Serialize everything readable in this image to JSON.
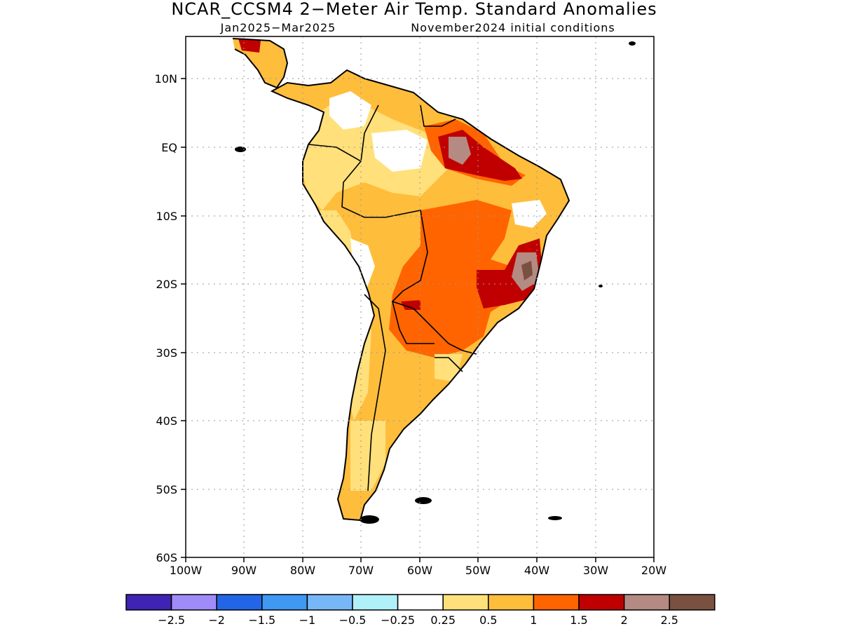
{
  "title": "NCAR_CCSM4 2−Meter Air Temp. Standard Anomalies",
  "subtitle_period": "Jan2025−Mar2025",
  "subtitle_init": "November2024 initial conditions",
  "lat_labels": [
    "10N",
    "EQ",
    "10S",
    "20S",
    "30S",
    "40S",
    "50S",
    "60S"
  ],
  "lon_labels": [
    "100W",
    "90W",
    "80W",
    "70W",
    "60W",
    "50W",
    "40W",
    "30W",
    "20W"
  ],
  "colorbar": {
    "colors": [
      "#3f23b4",
      "#a08cf8",
      "#2265e6",
      "#3f98f2",
      "#78b7f7",
      "#b0f0f8",
      "#ffffff",
      "#ffe07a",
      "#ffbd3c",
      "#ff6400",
      "#c00000",
      "#b48a82",
      "#7a5040"
    ],
    "labels": [
      "−2.5",
      "−2",
      "−1.5",
      "−1",
      "−0.5",
      "−0.25",
      "0.25",
      "0.5",
      "1",
      "1.5",
      "2",
      "2.5"
    ]
  }
}
